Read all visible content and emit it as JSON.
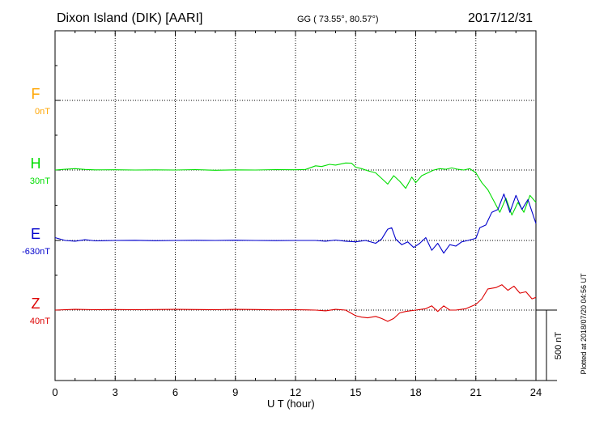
{
  "header": {
    "station": "Dixon Island (DIK)  [AARI]",
    "coords": "GG ( 73.55°,  80.57°)",
    "date": "2017/12/31"
  },
  "side_note": "Plotted at 2018/07/20 04:56 UT",
  "chart_data": {
    "type": "line",
    "title": "Dixon Island (DIK)  [AARI]",
    "xlabel": "U T (hour)",
    "xlim": [
      0,
      24
    ],
    "xticks": [
      "0",
      "3",
      "6",
      "9",
      "12",
      "15",
      "18",
      "21",
      "24"
    ],
    "grid": true,
    "scale_bar": {
      "label": "500 nT",
      "value": 500
    },
    "components": [
      {
        "name": "F",
        "baseline": "0nT",
        "color": "#ffa500",
        "row": 1,
        "has_trace": false
      },
      {
        "name": "H",
        "baseline": "30nT",
        "color": "#00dd00",
        "row": 2,
        "has_trace": true
      },
      {
        "name": "E",
        "baseline": "-630nT",
        "color": "#0000cc",
        "row": 3,
        "has_trace": true
      },
      {
        "name": "Z",
        "baseline": "40nT",
        "color": "#dd0000",
        "row": 4,
        "has_trace": true
      }
    ],
    "series": [
      {
        "name": "H",
        "x": [
          0,
          0.5,
          1,
          1.5,
          2,
          3,
          4,
          5,
          6,
          7,
          8,
          9,
          10,
          11,
          12,
          12.5,
          13,
          13.3,
          13.7,
          14,
          14.5,
          14.8,
          15,
          15.3,
          15.6,
          16,
          16.3,
          16.6,
          16.9,
          17.2,
          17.5,
          17.8,
          18,
          18.3,
          18.6,
          18.9,
          19.2,
          19.5,
          19.8,
          20.1,
          20.4,
          20.7,
          21,
          21.3,
          21.6,
          21.9,
          22.2,
          22.5,
          22.8,
          23.1,
          23.4,
          23.7,
          24
        ],
        "values": [
          0,
          5,
          10,
          4,
          1,
          2,
          0,
          1,
          0,
          3,
          -2,
          1,
          0,
          3,
          2,
          4,
          30,
          25,
          40,
          35,
          50,
          48,
          20,
          10,
          -5,
          -20,
          -60,
          -100,
          -40,
          -80,
          -130,
          -50,
          -90,
          -40,
          -20,
          0,
          10,
          5,
          15,
          5,
          0,
          10,
          -20,
          -90,
          -140,
          -220,
          -300,
          -200,
          -320,
          -230,
          -300,
          -180,
          -230
        ]
      },
      {
        "name": "E",
        "x": [
          0,
          0.5,
          1,
          1.5,
          2,
          3,
          4,
          5,
          6,
          7,
          8,
          9,
          10,
          11,
          12,
          13,
          13.5,
          14,
          14.5,
          15,
          15.5,
          16,
          16.3,
          16.6,
          16.8,
          17,
          17.3,
          17.6,
          17.9,
          18.2,
          18.5,
          18.8,
          19.1,
          19.4,
          19.7,
          20,
          20.3,
          20.6,
          21,
          21.2,
          21.5,
          21.8,
          22.1,
          22.4,
          22.7,
          23,
          23.3,
          23.6,
          24
        ],
        "values": [
          20,
          0,
          -5,
          5,
          -3,
          0,
          1,
          -2,
          0,
          1,
          0,
          2,
          0,
          -1,
          0,
          0,
          -5,
          3,
          -5,
          -10,
          0,
          -20,
          10,
          80,
          90,
          10,
          -30,
          -10,
          -50,
          -20,
          20,
          -70,
          -20,
          -90,
          -30,
          -40,
          -10,
          0,
          15,
          90,
          110,
          200,
          220,
          330,
          200,
          320,
          220,
          290,
          120
        ]
      },
      {
        "name": "Z",
        "x": [
          0,
          1,
          2,
          3,
          4,
          5,
          6,
          7,
          8,
          9,
          10,
          11,
          12,
          13,
          13.5,
          14,
          14.5,
          15,
          15.3,
          15.6,
          16,
          16.3,
          16.6,
          16.9,
          17.2,
          17.5,
          18,
          18.5,
          18.8,
          19.1,
          19.4,
          19.7,
          20,
          20.5,
          21,
          21.3,
          21.6,
          22,
          22.3,
          22.6,
          22.9,
          23.2,
          23.5,
          23.8,
          24
        ],
        "values": [
          0,
          5,
          3,
          4,
          3,
          4,
          5,
          4,
          3,
          5,
          4,
          2,
          3,
          0,
          -5,
          5,
          0,
          -40,
          -50,
          -55,
          -45,
          -60,
          -80,
          -60,
          -20,
          -10,
          0,
          10,
          30,
          -10,
          30,
          0,
          0,
          10,
          40,
          80,
          150,
          160,
          180,
          140,
          170,
          120,
          130,
          80,
          90
        ]
      }
    ]
  },
  "colors": {
    "grid": "#000000",
    "axis": "#000000"
  }
}
